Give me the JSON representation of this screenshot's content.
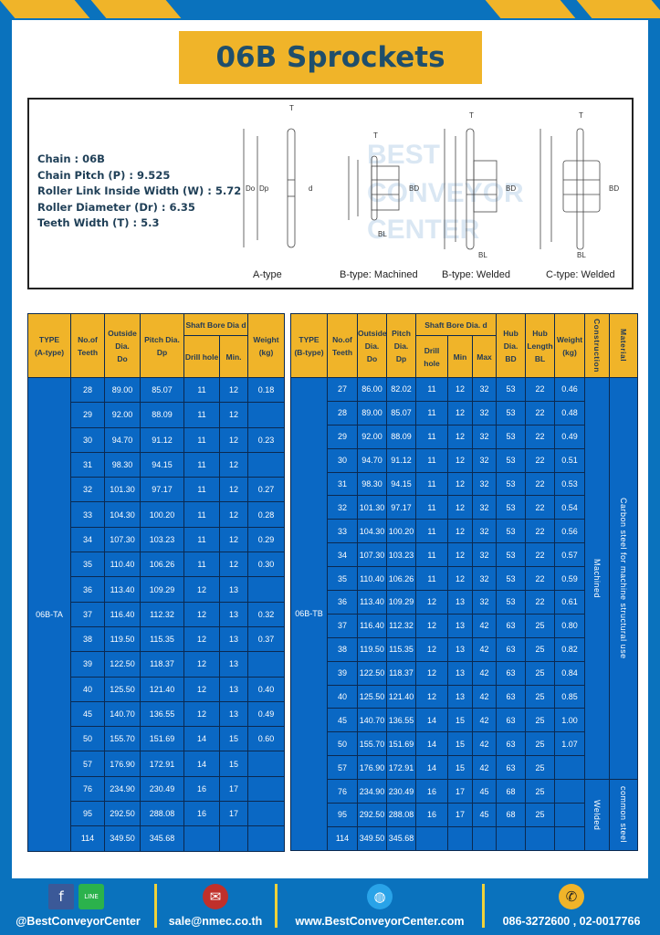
{
  "title": "06B Sprockets",
  "specs": {
    "chain": "Chain : 06B",
    "pitch": "Chain Pitch (P) : 9.525",
    "width": "Roller Link Inside Width (W) : 5.72",
    "roller": "Roller Diameter (Dr) : 6.35",
    "teeth": "Teeth Width (T) : 5.3"
  },
  "diagram": {
    "captions": [
      "A-type",
      "B-type: Machined",
      "B-type: Welded",
      "C-type: Welded"
    ],
    "labels": {
      "T": "T",
      "Do": "Do",
      "Dp": "Dp",
      "d": "d",
      "BD": "BD",
      "BL": "BL"
    },
    "watermark": [
      "BEST",
      "CONVEYOR",
      "CENTER"
    ]
  },
  "tableA": {
    "headers": {
      "type": [
        "TYPE",
        "(A-type)"
      ],
      "teeth": [
        "No.of",
        "Teeth"
      ],
      "do": [
        "Outside",
        "Dia.",
        "Do"
      ],
      "dp": [
        "Pitch Dia.",
        "Dp"
      ],
      "bore": "Shaft Bore Dia d",
      "drill": "Drill hole",
      "min": "Min.",
      "weight": [
        "Weight",
        "(kg)"
      ]
    },
    "type": "06B-TA",
    "rows": [
      [
        "28",
        "89.00",
        "85.07",
        "11",
        "12",
        "0.18"
      ],
      [
        "29",
        "92.00",
        "88.09",
        "11",
        "12",
        ""
      ],
      [
        "30",
        "94.70",
        "91.12",
        "11",
        "12",
        "0.23"
      ],
      [
        "31",
        "98.30",
        "94.15",
        "11",
        "12",
        ""
      ],
      [
        "32",
        "101.30",
        "97.17",
        "11",
        "12",
        "0.27"
      ],
      [
        "33",
        "104.30",
        "100.20",
        "11",
        "12",
        "0.28"
      ],
      [
        "34",
        "107.30",
        "103.23",
        "11",
        "12",
        "0.29"
      ],
      [
        "35",
        "110.40",
        "106.26",
        "11",
        "12",
        "0.30"
      ],
      [
        "36",
        "113.40",
        "109.29",
        "12",
        "13",
        ""
      ],
      [
        "37",
        "116.40",
        "112.32",
        "12",
        "13",
        "0.32"
      ],
      [
        "38",
        "119.50",
        "115.35",
        "12",
        "13",
        "0.37"
      ],
      [
        "39",
        "122.50",
        "118.37",
        "12",
        "13",
        ""
      ],
      [
        "40",
        "125.50",
        "121.40",
        "12",
        "13",
        "0.40"
      ],
      [
        "45",
        "140.70",
        "136.55",
        "12",
        "13",
        "0.49"
      ],
      [
        "50",
        "155.70",
        "151.69",
        "14",
        "15",
        "0.60"
      ],
      [
        "57",
        "176.90",
        "172.91",
        "14",
        "15",
        ""
      ],
      [
        "76",
        "234.90",
        "230.49",
        "16",
        "17",
        ""
      ],
      [
        "95",
        "292.50",
        "288.08",
        "16",
        "17",
        ""
      ],
      [
        "114",
        "349.50",
        "345.68",
        "",
        "",
        ""
      ]
    ]
  },
  "tableB": {
    "headers": {
      "type": [
        "TYPE",
        "(B-type)"
      ],
      "teeth": [
        "No.of",
        "Teeth"
      ],
      "do": [
        "Outside",
        "Dia.",
        "Do"
      ],
      "dp": [
        "Pitch",
        "Dia.",
        "Dp"
      ],
      "bore": "Shaft Bore Dia. d",
      "drill": "Drill hole",
      "min": "Min",
      "max": "Max",
      "bd": [
        "Hub",
        "Dia.",
        "BD"
      ],
      "bl": [
        "Hub",
        "Length",
        "BL"
      ],
      "weight": [
        "Weight",
        "(kg)"
      ],
      "construction": "Construction",
      "material": "Material"
    },
    "type": "06B-TB",
    "construction": [
      "Machined",
      "Welded"
    ],
    "material": [
      "Carbon steel for machine structural use",
      "common steel"
    ],
    "rows": [
      [
        "27",
        "86.00",
        "82.02",
        "11",
        "12",
        "32",
        "53",
        "22",
        "0.46"
      ],
      [
        "28",
        "89.00",
        "85.07",
        "11",
        "12",
        "32",
        "53",
        "22",
        "0.48"
      ],
      [
        "29",
        "92.00",
        "88.09",
        "11",
        "12",
        "32",
        "53",
        "22",
        "0.49"
      ],
      [
        "30",
        "94.70",
        "91.12",
        "11",
        "12",
        "32",
        "53",
        "22",
        "0.51"
      ],
      [
        "31",
        "98.30",
        "94.15",
        "11",
        "12",
        "32",
        "53",
        "22",
        "0.53"
      ],
      [
        "32",
        "101.30",
        "97.17",
        "11",
        "12",
        "32",
        "53",
        "22",
        "0.54"
      ],
      [
        "33",
        "104.30",
        "100.20",
        "11",
        "12",
        "32",
        "53",
        "22",
        "0.56"
      ],
      [
        "34",
        "107.30",
        "103.23",
        "11",
        "12",
        "32",
        "53",
        "22",
        "0.57"
      ],
      [
        "35",
        "110.40",
        "106.26",
        "11",
        "12",
        "32",
        "53",
        "22",
        "0.59"
      ],
      [
        "36",
        "113.40",
        "109.29",
        "12",
        "13",
        "32",
        "53",
        "22",
        "0.61"
      ],
      [
        "37",
        "116.40",
        "112.32",
        "12",
        "13",
        "42",
        "63",
        "25",
        "0.80"
      ],
      [
        "38",
        "119.50",
        "115.35",
        "12",
        "13",
        "42",
        "63",
        "25",
        "0.82"
      ],
      [
        "39",
        "122.50",
        "118.37",
        "12",
        "13",
        "42",
        "63",
        "25",
        "0.84"
      ],
      [
        "40",
        "125.50",
        "121.40",
        "12",
        "13",
        "42",
        "63",
        "25",
        "0.85"
      ],
      [
        "45",
        "140.70",
        "136.55",
        "14",
        "15",
        "42",
        "63",
        "25",
        "1.00"
      ],
      [
        "50",
        "155.70",
        "151.69",
        "14",
        "15",
        "42",
        "63",
        "25",
        "1.07"
      ],
      [
        "57",
        "176.90",
        "172.91",
        "14",
        "15",
        "42",
        "63",
        "25",
        ""
      ],
      [
        "76",
        "234.90",
        "230.49",
        "16",
        "17",
        "45",
        "68",
        "25",
        ""
      ],
      [
        "95",
        "292.50",
        "288.08",
        "16",
        "17",
        "45",
        "68",
        "25",
        ""
      ],
      [
        "114",
        "349.50",
        "345.68",
        "",
        "",
        "",
        "",
        "",
        ""
      ]
    ]
  },
  "footer": {
    "social": "@BestConveyorCenter",
    "line_icon_text": "LINE",
    "email": "sale@nmec.co.th",
    "website": "www.BestConveyorCenter.com",
    "phone": "086-3272600 , 02-0017766"
  },
  "colors": {
    "blue": "#0a72bd",
    "yellow": "#f0b429",
    "cell": "#0a68c4",
    "title_text": "#1f4e6b"
  }
}
